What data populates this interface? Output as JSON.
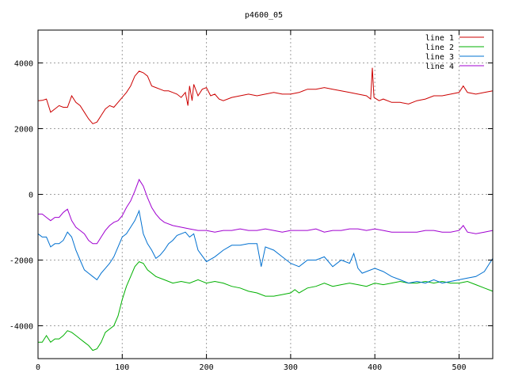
{
  "chart_data": {
    "type": "line",
    "title": "p4600_05",
    "xlabel": "",
    "ylabel": "",
    "xlim": [
      0,
      540
    ],
    "ylim": [
      -5000,
      5000
    ],
    "xticks": [
      0,
      100,
      200,
      300,
      400,
      500
    ],
    "yticks": [
      -4000,
      -2000,
      0,
      2000,
      4000
    ],
    "grid": true,
    "legend_position": "top-right",
    "series": [
      {
        "name": "line 1",
        "color": "#cc0000",
        "x": [
          0,
          5,
          10,
          15,
          20,
          25,
          30,
          35,
          40,
          45,
          50,
          55,
          60,
          65,
          70,
          75,
          80,
          85,
          90,
          95,
          100,
          105,
          110,
          115,
          120,
          125,
          130,
          135,
          140,
          145,
          150,
          155,
          160,
          165,
          170,
          175,
          178,
          180,
          183,
          185,
          190,
          195,
          200,
          205,
          210,
          215,
          220,
          230,
          240,
          250,
          260,
          270,
          280,
          290,
          300,
          310,
          320,
          330,
          340,
          350,
          360,
          370,
          380,
          390,
          395,
          397,
          399,
          405,
          410,
          420,
          430,
          440,
          450,
          460,
          470,
          480,
          490,
          500,
          505,
          510,
          520,
          530,
          540
        ],
        "y": [
          2850,
          2860,
          2900,
          2500,
          2600,
          2700,
          2650,
          2650,
          3000,
          2800,
          2700,
          2500,
          2300,
          2150,
          2200,
          2400,
          2600,
          2700,
          2650,
          2800,
          2950,
          3100,
          3300,
          3600,
          3750,
          3700,
          3600,
          3300,
          3250,
          3200,
          3150,
          3150,
          3100,
          3050,
          2950,
          3100,
          2700,
          3300,
          2850,
          3350,
          3000,
          3200,
          3250,
          3000,
          3050,
          2900,
          2850,
          2950,
          3000,
          3050,
          3000,
          3050,
          3100,
          3050,
          3050,
          3100,
          3200,
          3200,
          3250,
          3200,
          3150,
          3100,
          3050,
          3000,
          2900,
          3850,
          2950,
          2850,
          2900,
          2800,
          2800,
          2750,
          2850,
          2900,
          3000,
          3000,
          3050,
          3100,
          3300,
          3100,
          3050,
          3100,
          3150
        ]
      },
      {
        "name": "line 2",
        "color": "#00b000",
        "x": [
          0,
          5,
          10,
          15,
          20,
          25,
          30,
          35,
          40,
          45,
          50,
          55,
          60,
          65,
          70,
          75,
          80,
          85,
          90,
          95,
          100,
          105,
          110,
          115,
          120,
          125,
          130,
          140,
          150,
          160,
          170,
          180,
          190,
          200,
          210,
          220,
          230,
          240,
          250,
          260,
          270,
          280,
          290,
          300,
          305,
          310,
          320,
          330,
          340,
          350,
          360,
          370,
          380,
          390,
          400,
          410,
          420,
          430,
          440,
          450,
          460,
          470,
          480,
          490,
          500,
          510,
          520,
          530,
          540
        ],
        "y": [
          -4500,
          -4500,
          -4300,
          -4500,
          -4400,
          -4400,
          -4300,
          -4150,
          -4200,
          -4300,
          -4400,
          -4500,
          -4600,
          -4750,
          -4700,
          -4500,
          -4200,
          -4100,
          -4000,
          -3700,
          -3200,
          -2800,
          -2500,
          -2200,
          -2050,
          -2100,
          -2300,
          -2500,
          -2600,
          -2700,
          -2650,
          -2700,
          -2600,
          -2700,
          -2650,
          -2700,
          -2800,
          -2850,
          -2950,
          -3000,
          -3100,
          -3100,
          -3050,
          -3000,
          -2900,
          -3000,
          -2850,
          -2800,
          -2700,
          -2800,
          -2750,
          -2700,
          -2750,
          -2800,
          -2700,
          -2750,
          -2700,
          -2650,
          -2700,
          -2700,
          -2650,
          -2700,
          -2650,
          -2700,
          -2700,
          -2650,
          -2750,
          -2850,
          -2950
        ]
      },
      {
        "name": "line 3",
        "color": "#0070d0",
        "x": [
          0,
          5,
          10,
          15,
          20,
          25,
          30,
          35,
          40,
          45,
          50,
          55,
          60,
          65,
          70,
          75,
          80,
          85,
          90,
          95,
          100,
          105,
          110,
          115,
          120,
          125,
          130,
          135,
          140,
          145,
          150,
          155,
          160,
          165,
          170,
          175,
          180,
          185,
          190,
          200,
          210,
          220,
          230,
          240,
          250,
          260,
          265,
          270,
          280,
          290,
          300,
          310,
          320,
          330,
          340,
          350,
          360,
          370,
          375,
          380,
          385,
          390,
          400,
          410,
          420,
          430,
          440,
          450,
          460,
          470,
          480,
          490,
          500,
          510,
          520,
          530,
          540
        ],
        "y": [
          -1200,
          -1300,
          -1300,
          -1600,
          -1500,
          -1500,
          -1400,
          -1150,
          -1300,
          -1700,
          -2000,
          -2300,
          -2400,
          -2500,
          -2600,
          -2400,
          -2250,
          -2100,
          -1900,
          -1600,
          -1300,
          -1200,
          -1000,
          -800,
          -500,
          -1200,
          -1500,
          -1700,
          -1950,
          -1850,
          -1700,
          -1500,
          -1400,
          -1250,
          -1200,
          -1150,
          -1300,
          -1200,
          -1700,
          -2050,
          -1900,
          -1700,
          -1550,
          -1550,
          -1500,
          -1500,
          -2200,
          -1600,
          -1700,
          -1900,
          -2100,
          -2200,
          -2000,
          -2000,
          -1900,
          -2200,
          -2000,
          -2100,
          -1800,
          -2250,
          -2400,
          -2350,
          -2250,
          -2350,
          -2500,
          -2600,
          -2700,
          -2650,
          -2700,
          -2600,
          -2700,
          -2650,
          -2600,
          -2550,
          -2500,
          -2350,
          -1950
        ]
      },
      {
        "name": "line 4",
        "color": "#a000d0",
        "x": [
          0,
          5,
          10,
          15,
          20,
          25,
          30,
          35,
          40,
          45,
          50,
          55,
          60,
          65,
          70,
          75,
          80,
          85,
          90,
          95,
          100,
          105,
          110,
          115,
          120,
          125,
          130,
          135,
          140,
          145,
          150,
          160,
          170,
          180,
          190,
          200,
          210,
          220,
          230,
          240,
          250,
          260,
          270,
          280,
          290,
          300,
          310,
          320,
          330,
          340,
          350,
          360,
          370,
          380,
          390,
          400,
          410,
          420,
          430,
          440,
          450,
          460,
          470,
          480,
          490,
          500,
          505,
          510,
          520,
          530,
          540
        ],
        "y": [
          -600,
          -600,
          -700,
          -800,
          -700,
          -700,
          -550,
          -450,
          -800,
          -1000,
          -1100,
          -1200,
          -1400,
          -1500,
          -1500,
          -1300,
          -1100,
          -950,
          -850,
          -800,
          -650,
          -400,
          -200,
          100,
          450,
          250,
          -100,
          -400,
          -600,
          -750,
          -850,
          -950,
          -1000,
          -1050,
          -1100,
          -1100,
          -1150,
          -1100,
          -1100,
          -1050,
          -1100,
          -1100,
          -1050,
          -1100,
          -1150,
          -1100,
          -1100,
          -1100,
          -1050,
          -1150,
          -1100,
          -1100,
          -1050,
          -1050,
          -1100,
          -1050,
          -1100,
          -1150,
          -1150,
          -1150,
          -1150,
          -1100,
          -1100,
          -1150,
          -1150,
          -1100,
          -950,
          -1150,
          -1200,
          -1150,
          -1100
        ]
      }
    ]
  }
}
